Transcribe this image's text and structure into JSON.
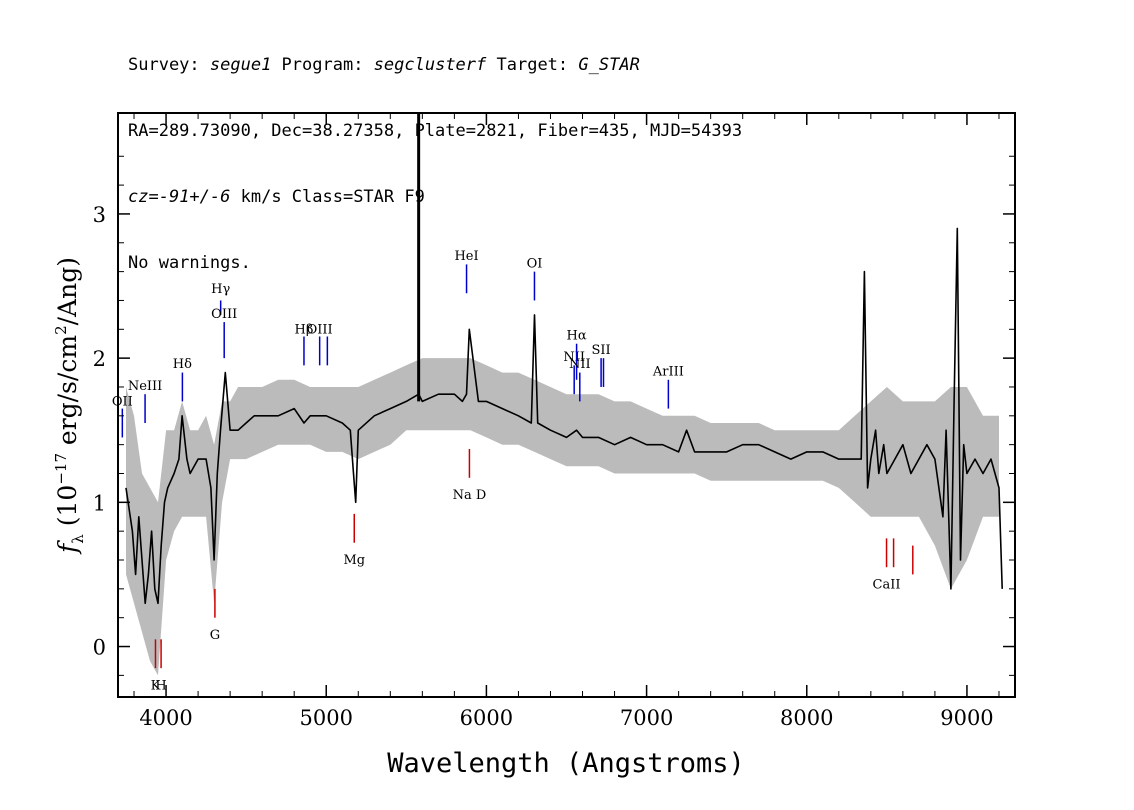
{
  "header": {
    "line1": {
      "survey_label": "Survey: ",
      "survey": "segue1",
      "program_label": " Program: ",
      "program": "segclusterf",
      "target_label": " Target: ",
      "target": "G_STAR"
    },
    "line2": "RA=289.73090, Dec=38.27358, Plate=2821, Fiber=435, MJD=54393",
    "line3": {
      "cz_label": "cz=",
      "cz_value": "-91+/-6",
      "cz_rest": " km/s Class=STAR F9"
    },
    "line4": "No warnings."
  },
  "chart_data": {
    "type": "line",
    "title": "",
    "xlabel": "Wavelength (Angstroms)",
    "ylabel": {
      "f": "f",
      "lambda": "λ",
      "open": " (10",
      "exp1": "−17",
      "mid": " erg/s/cm",
      "exp2": "2",
      "close": "/Ang)"
    },
    "xlim": [
      3700,
      9300
    ],
    "ylim": [
      -0.35,
      3.7
    ],
    "xticks": [
      4000,
      5000,
      6000,
      7000,
      8000,
      9000
    ],
    "yticks": [
      0,
      1,
      2,
      3
    ],
    "grid": false,
    "series": [
      {
        "role": "error-band",
        "color": "#bbbbbb",
        "x": [
          3750,
          3800,
          3850,
          3900,
          3950,
          4000,
          4050,
          4100,
          4150,
          4200,
          4250,
          4300,
          4350,
          4400,
          4450,
          4500,
          4600,
          4700,
          4800,
          4900,
          5000,
          5100,
          5200,
          5300,
          5400,
          5500,
          5600,
          5700,
          5800,
          5900,
          6000,
          6100,
          6200,
          6300,
          6400,
          6500,
          6600,
          6700,
          6800,
          6900,
          7000,
          7100,
          7200,
          7300,
          7400,
          7500,
          7600,
          7700,
          7800,
          7900,
          8000,
          8100,
          8200,
          8300,
          8400,
          8500,
          8600,
          8700,
          8800,
          8900,
          9000,
          9100,
          9200
        ],
        "upper": [
          1.8,
          1.6,
          1.2,
          1.1,
          1.0,
          1.5,
          1.5,
          1.7,
          1.5,
          1.5,
          1.6,
          1.4,
          1.7,
          1.7,
          1.8,
          1.8,
          1.8,
          1.85,
          1.85,
          1.8,
          1.8,
          1.8,
          1.8,
          1.85,
          1.9,
          1.95,
          2.0,
          2.0,
          2.0,
          2.0,
          1.95,
          1.9,
          1.9,
          1.85,
          1.8,
          1.75,
          1.75,
          1.75,
          1.7,
          1.7,
          1.65,
          1.6,
          1.6,
          1.6,
          1.55,
          1.55,
          1.55,
          1.55,
          1.5,
          1.5,
          1.5,
          1.5,
          1.5,
          1.6,
          1.7,
          1.8,
          1.7,
          1.7,
          1.7,
          1.8,
          1.8,
          1.6,
          1.6
        ],
        "lower": [
          0.5,
          0.3,
          0.1,
          -0.1,
          -0.2,
          0.6,
          0.8,
          0.9,
          0.9,
          0.9,
          0.9,
          0.3,
          1.0,
          1.3,
          1.3,
          1.3,
          1.35,
          1.4,
          1.4,
          1.4,
          1.35,
          1.35,
          1.3,
          1.35,
          1.4,
          1.5,
          1.5,
          1.5,
          1.5,
          1.5,
          1.45,
          1.4,
          1.4,
          1.35,
          1.3,
          1.25,
          1.25,
          1.25,
          1.2,
          1.2,
          1.2,
          1.2,
          1.2,
          1.2,
          1.15,
          1.15,
          1.15,
          1.15,
          1.15,
          1.15,
          1.15,
          1.15,
          1.1,
          1.0,
          0.9,
          0.9,
          0.9,
          0.9,
          0.7,
          0.4,
          0.6,
          0.9,
          0.9
        ]
      },
      {
        "role": "flux",
        "color": "#000000",
        "x": [
          3750,
          3790,
          3810,
          3830,
          3850,
          3870,
          3890,
          3910,
          3930,
          3950,
          3970,
          3990,
          4010,
          4050,
          4080,
          4100,
          4130,
          4150,
          4200,
          4250,
          4280,
          4300,
          4320,
          4340,
          4370,
          4400,
          4450,
          4500,
          4550,
          4600,
          4700,
          4800,
          4861,
          4900,
          5000,
          5100,
          5150,
          5170,
          5184,
          5200,
          5300,
          5400,
          5500,
          5577,
          5600,
          5700,
          5800,
          5850,
          5876,
          5893,
          5950,
          6000,
          6100,
          6200,
          6280,
          6300,
          6320,
          6400,
          6500,
          6563,
          6600,
          6700,
          6800,
          6900,
          7000,
          7100,
          7200,
          7250,
          7300,
          7400,
          7500,
          7600,
          7700,
          7800,
          7900,
          8000,
          8100,
          8200,
          8300,
          8340,
          8360,
          8380,
          8400,
          8430,
          8450,
          8480,
          8500,
          8550,
          8600,
          8650,
          8700,
          8750,
          8800,
          8850,
          8870,
          8900,
          8920,
          8940,
          8960,
          8980,
          9000,
          9050,
          9100,
          9150,
          9200,
          9220
        ],
        "y": [
          1.1,
          0.8,
          0.5,
          0.9,
          0.6,
          0.3,
          0.5,
          0.8,
          0.4,
          0.3,
          0.7,
          1.0,
          1.1,
          1.2,
          1.3,
          1.6,
          1.3,
          1.2,
          1.3,
          1.3,
          1.1,
          0.6,
          1.2,
          1.5,
          1.9,
          1.5,
          1.5,
          1.55,
          1.6,
          1.6,
          1.6,
          1.65,
          1.55,
          1.6,
          1.6,
          1.55,
          1.5,
          1.2,
          1.0,
          1.5,
          1.6,
          1.65,
          1.7,
          1.75,
          1.7,
          1.75,
          1.75,
          1.7,
          1.75,
          2.2,
          1.7,
          1.7,
          1.65,
          1.6,
          1.55,
          2.3,
          1.55,
          1.5,
          1.45,
          1.5,
          1.45,
          1.45,
          1.4,
          1.45,
          1.4,
          1.4,
          1.35,
          1.5,
          1.35,
          1.35,
          1.35,
          1.4,
          1.4,
          1.35,
          1.3,
          1.35,
          1.35,
          1.3,
          1.3,
          1.3,
          2.6,
          1.1,
          1.3,
          1.5,
          1.2,
          1.4,
          1.2,
          1.3,
          1.4,
          1.2,
          1.3,
          1.4,
          1.3,
          0.9,
          1.5,
          0.4,
          1.7,
          2.9,
          0.6,
          1.4,
          1.2,
          1.3,
          1.2,
          1.3,
          1.1,
          0.4
        ],
        "spikes": [
          {
            "x": 5577,
            "y": 3.7
          }
        ]
      }
    ],
    "line_markers": [
      {
        "label": "OII",
        "x": 3727,
        "color": "#0000cc",
        "y_from": 1.45,
        "y_to": 1.65,
        "label_y": 1.67
      },
      {
        "label": "NeIII",
        "x": 3869,
        "color": "#0000cc",
        "y_from": 1.55,
        "y_to": 1.75,
        "label_y": 1.78
      },
      {
        "label": "Hδ",
        "x": 4102,
        "color": "#0000cc",
        "y_from": 1.7,
        "y_to": 1.9,
        "label_y": 1.93
      },
      {
        "label": "Hγ",
        "x": 4341,
        "color": "#0000cc",
        "y_from": 2.3,
        "y_to": 2.4,
        "label_y": 2.45
      },
      {
        "label": "OIII",
        "x": 4363,
        "color": "#0000cc",
        "y_from": 2.0,
        "y_to": 2.25,
        "label_y": 2.28
      },
      {
        "label": "Hβ",
        "x": 4861,
        "color": "#0000cc",
        "y_from": 1.95,
        "y_to": 2.15,
        "label_y": 2.17
      },
      {
        "label": "OIII",
        "x": 4959,
        "color": "#0000cc",
        "y_from": 1.95,
        "y_to": 2.15,
        "label_y": 2.17
      },
      {
        "label": "",
        "x": 5007,
        "color": "#0000cc",
        "y_from": 1.95,
        "y_to": 2.15,
        "label_y": 2.17
      },
      {
        "label": "HeI",
        "x": 5876,
        "color": "#0000cc",
        "y_from": 2.45,
        "y_to": 2.65,
        "label_y": 2.68
      },
      {
        "label": "OI",
        "x": 6300,
        "color": "#0000cc",
        "y_from": 2.4,
        "y_to": 2.6,
        "label_y": 2.63
      },
      {
        "label": "NII",
        "x": 6548,
        "color": "#0000cc",
        "y_from": 1.75,
        "y_to": 1.95,
        "label_y": 1.98
      },
      {
        "label": "Hα",
        "x": 6563,
        "color": "#0000cc",
        "y_from": 1.85,
        "y_to": 2.1,
        "label_y": 2.13
      },
      {
        "label": "NII",
        "x": 6583,
        "color": "#0000cc",
        "y_from": 1.7,
        "y_to": 1.9,
        "label_y": 1.93
      },
      {
        "label": "SII",
        "x": 6716,
        "color": "#0000cc",
        "y_from": 1.8,
        "y_to": 2.0,
        "label_y": 2.03
      },
      {
        "label": "",
        "x": 6731,
        "color": "#0000cc",
        "y_from": 1.8,
        "y_to": 2.0,
        "label_y": 2.03
      },
      {
        "label": "ArIII",
        "x": 7136,
        "color": "#0000cc",
        "y_from": 1.65,
        "y_to": 1.85,
        "label_y": 1.88
      },
      {
        "label": "K",
        "x": 3934,
        "color": "#cc0000",
        "y_from": -0.15,
        "y_to": 0.05,
        "label_y": -0.2
      },
      {
        "label": "H",
        "x": 3969,
        "color": "#cc0000",
        "y_from": -0.15,
        "y_to": 0.05,
        "label_y": -0.2
      },
      {
        "label": "G",
        "x": 4305,
        "color": "#cc0000",
        "y_from": 0.2,
        "y_to": 0.4,
        "label_y": 0.15
      },
      {
        "label": "Mg",
        "x": 5175,
        "color": "#cc0000",
        "y_from": 0.72,
        "y_to": 0.92,
        "label_y": 0.67
      },
      {
        "label": "Na D",
        "x": 5894,
        "color": "#cc0000",
        "y_from": 1.17,
        "y_to": 1.37,
        "label_y": 1.12
      },
      {
        "label": "CaII",
        "x": 8498,
        "color": "#cc0000",
        "y_from": 0.55,
        "y_to": 0.75,
        "label_y": 0.5
      },
      {
        "label": "",
        "x": 8542,
        "color": "#cc0000",
        "y_from": 0.55,
        "y_to": 0.75,
        "label_y": 0.5
      },
      {
        "label": "",
        "x": 8662,
        "color": "#cc0000",
        "y_from": 0.5,
        "y_to": 0.7,
        "label_y": 0.45
      }
    ]
  }
}
